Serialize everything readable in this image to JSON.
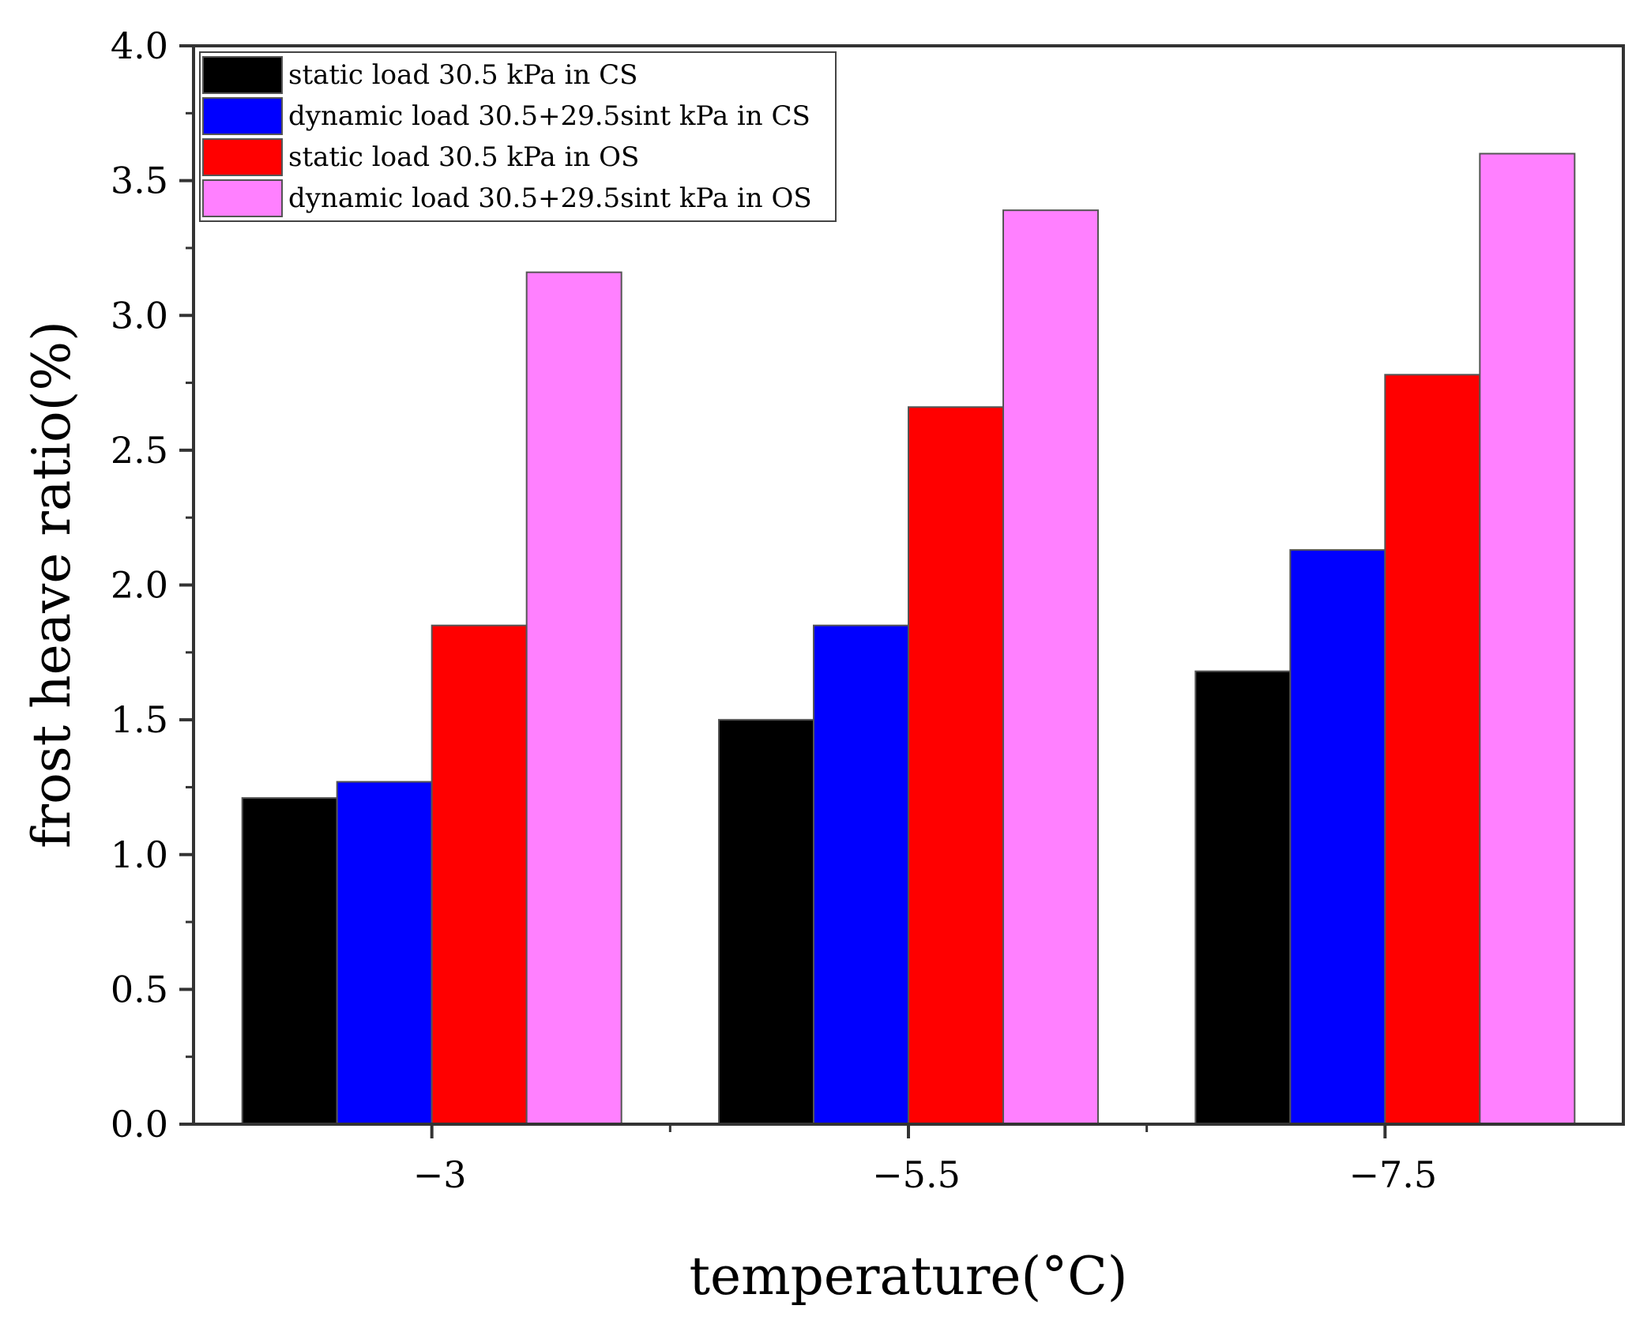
{
  "chart_data": {
    "type": "bar",
    "title": "",
    "xlabel": "temperature(°C)",
    "ylabel": "frost heave ratio(%)",
    "ylim": [
      0,
      4.0
    ],
    "yticks": [
      "0.0",
      "0.5",
      "1.0",
      "1.5",
      "2.0",
      "2.5",
      "3.0",
      "3.5",
      "4.0"
    ],
    "categories": [
      "−3",
      "−5.5",
      "−7.5"
    ],
    "legend_position": "top-left",
    "series": [
      {
        "name": "static load 30.5 kPa in CS",
        "color": "#000000",
        "values": [
          1.21,
          1.5,
          1.68
        ]
      },
      {
        "name": "dynamic load 30.5+29.5sint kPa in CS",
        "color": "#0000ff",
        "values": [
          1.27,
          1.85,
          2.13
        ]
      },
      {
        "name": "static load 30.5 kPa in OS",
        "color": "#ff0000",
        "values": [
          1.85,
          2.66,
          2.78
        ]
      },
      {
        "name": "dynamic load 30.5+29.5sint kPa in OS",
        "color": "#ff80ff",
        "values": [
          3.16,
          3.39,
          3.6
        ]
      }
    ]
  }
}
